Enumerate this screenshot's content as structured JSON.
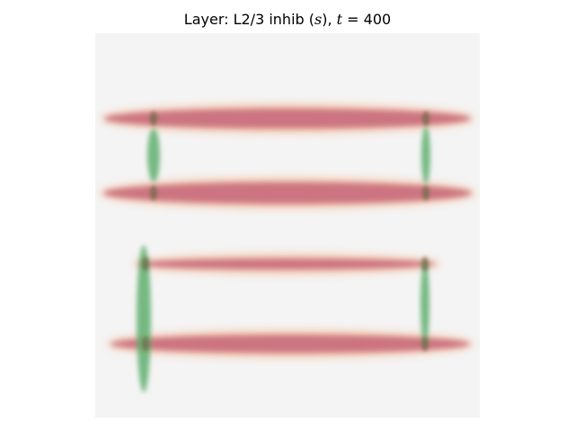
{
  "title": {
    "prefix": "Layer: L2/3 inhib (",
    "var_s": "s",
    "middle": "), ",
    "var_t": "t",
    "suffix": " = 400"
  },
  "colors": {
    "background": "#f4f4f4",
    "horizontal_band": "#c9707e",
    "horizontal_glow": "#f5c8a8",
    "vertical_band": "#5faf6e",
    "overlap": "#6f6a45"
  },
  "horizontal_bands": [
    {
      "name": "band-1"
    },
    {
      "name": "band-2"
    },
    {
      "name": "band-3"
    },
    {
      "name": "band-4"
    }
  ],
  "vertical_bands": [
    {
      "name": "left-upper"
    },
    {
      "name": "left-lower"
    },
    {
      "name": "right-upper"
    },
    {
      "name": "right-lower"
    }
  ]
}
